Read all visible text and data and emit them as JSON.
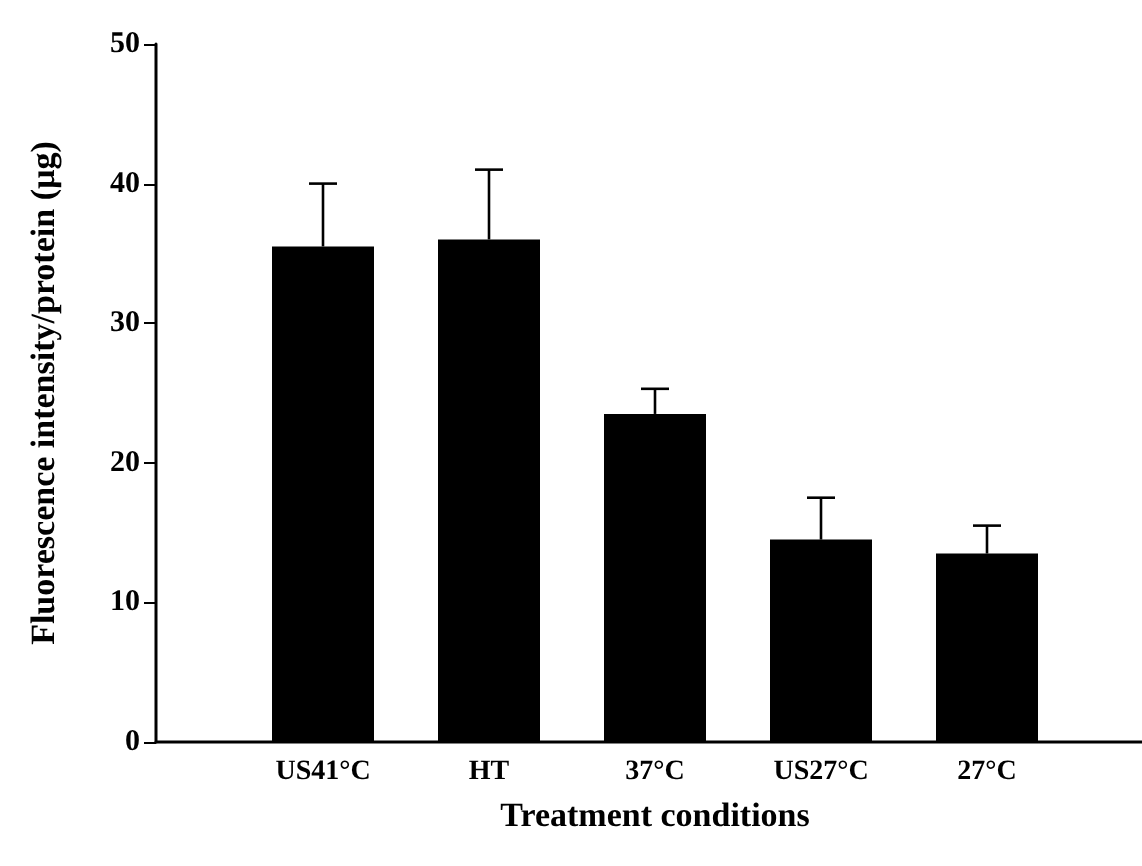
{
  "chart_data": {
    "type": "bar",
    "xlabel": "Treatment conditions",
    "ylabel": "Fluorescence intensity/protein (µg)",
    "categories": [
      "US41°C",
      "HT",
      "37°C",
      "US27°C",
      "27°C"
    ],
    "values": [
      35.5,
      36,
      23.5,
      14.5,
      13.5
    ],
    "errors": [
      [
        35.5,
        40
      ],
      [
        36,
        41
      ],
      [
        23.5,
        25.3
      ],
      [
        14.5,
        17.5
      ],
      [
        13.5,
        15.5
      ]
    ],
    "color": "#000000",
    "ylim": [
      0,
      50
    ],
    "yticks": [
      0,
      10,
      20,
      30,
      40,
      50
    ]
  }
}
